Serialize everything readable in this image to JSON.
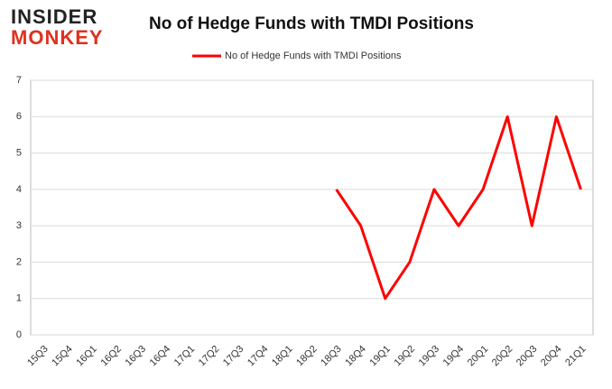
{
  "logo": {
    "line1": "INSIDER",
    "line2": "MONKEY"
  },
  "chart_data": {
    "type": "line",
    "title": "No of Hedge Funds with TMDI Positions",
    "categories": [
      "15Q3",
      "15Q4",
      "16Q1",
      "16Q2",
      "16Q3",
      "16Q4",
      "17Q1",
      "17Q2",
      "17Q3",
      "17Q4",
      "18Q1",
      "18Q2",
      "18Q3",
      "18Q4",
      "19Q1",
      "19Q2",
      "19Q3",
      "19Q4",
      "20Q1",
      "20Q2",
      "20Q3",
      "20Q4",
      "21Q1"
    ],
    "series": [
      {
        "name": "No of Hedge Funds with TMDI Positions",
        "color": "#ff0000",
        "values": [
          null,
          null,
          null,
          null,
          null,
          null,
          null,
          null,
          null,
          null,
          null,
          null,
          4,
          3,
          1,
          2,
          4,
          3,
          4,
          6,
          3,
          6,
          4
        ]
      }
    ],
    "ylim": [
      0,
      7
    ],
    "yticks": [
      0,
      1,
      2,
      3,
      4,
      5,
      6,
      7
    ],
    "grid": true
  }
}
